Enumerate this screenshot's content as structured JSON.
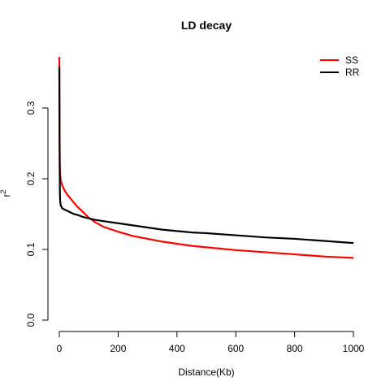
{
  "chart_data": {
    "type": "line",
    "title": "LD decay",
    "xlabel": "Distance(Kb)",
    "ylabel": "r",
    "ylabel_superscript": "2",
    "xlim": [
      0,
      1000
    ],
    "ylim": [
      0,
      0.37
    ],
    "xticks": [
      0,
      200,
      400,
      600,
      800,
      1000
    ],
    "yticks": [
      0.0,
      0.1,
      0.2,
      0.3
    ],
    "xtick_labels": [
      "0",
      "200",
      "400",
      "600",
      "800",
      "1000"
    ],
    "ytick_labels": [
      "0.0",
      "0.1",
      "0.2",
      "0.3"
    ],
    "grid": false,
    "legend_position": "top-right",
    "series": [
      {
        "name": "SS",
        "color": "#ff0000",
        "x": [
          0,
          0.5,
          1,
          2,
          3,
          5,
          8,
          10,
          15,
          20,
          30,
          40,
          50,
          60,
          80,
          100,
          120,
          150,
          200,
          250,
          300,
          350,
          400,
          450,
          500,
          600,
          700,
          800,
          900,
          1000
        ],
        "y": [
          0.372,
          0.33,
          0.26,
          0.215,
          0.205,
          0.198,
          0.193,
          0.19,
          0.186,
          0.182,
          0.176,
          0.171,
          0.166,
          0.161,
          0.153,
          0.145,
          0.139,
          0.132,
          0.125,
          0.119,
          0.115,
          0.111,
          0.108,
          0.105,
          0.103,
          0.099,
          0.096,
          0.093,
          0.09,
          0.088
        ]
      },
      {
        "name": "RR",
        "color": "#000000",
        "x": [
          0,
          0.5,
          1,
          2,
          3,
          5,
          8,
          10,
          15,
          20,
          30,
          40,
          50,
          60,
          80,
          100,
          120,
          150,
          200,
          250,
          300,
          350,
          400,
          450,
          500,
          600,
          700,
          800,
          900,
          1000
        ],
        "y": [
          0.358,
          0.3,
          0.23,
          0.18,
          0.168,
          0.162,
          0.16,
          0.158,
          0.157,
          0.156,
          0.154,
          0.152,
          0.15,
          0.149,
          0.146,
          0.144,
          0.142,
          0.14,
          0.137,
          0.134,
          0.131,
          0.128,
          0.126,
          0.124,
          0.123,
          0.12,
          0.117,
          0.115,
          0.112,
          0.109
        ]
      }
    ]
  }
}
